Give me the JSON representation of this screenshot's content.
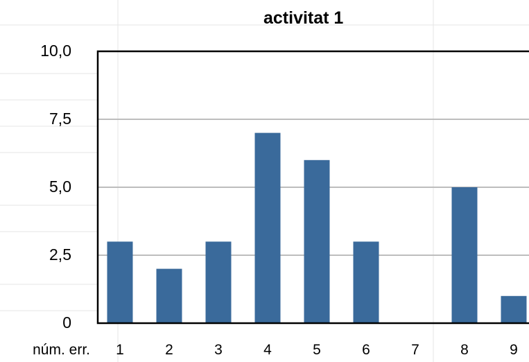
{
  "chart_data": {
    "type": "bar",
    "title": "activitat 1",
    "xlabel": "núm. err.",
    "ylabel": "",
    "categories": [
      "1",
      "2",
      "3",
      "4",
      "5",
      "6",
      "7",
      "8",
      "9"
    ],
    "values": [
      3,
      2,
      3,
      7,
      6,
      3,
      0,
      5,
      1
    ],
    "ylim": [
      0,
      10
    ],
    "yticks": [
      "0",
      "2,5",
      "5,0",
      "7,5",
      "10,0"
    ],
    "grid": true,
    "bar_color": "#3A6A9B",
    "grid_color": "#BDBDBD"
  }
}
